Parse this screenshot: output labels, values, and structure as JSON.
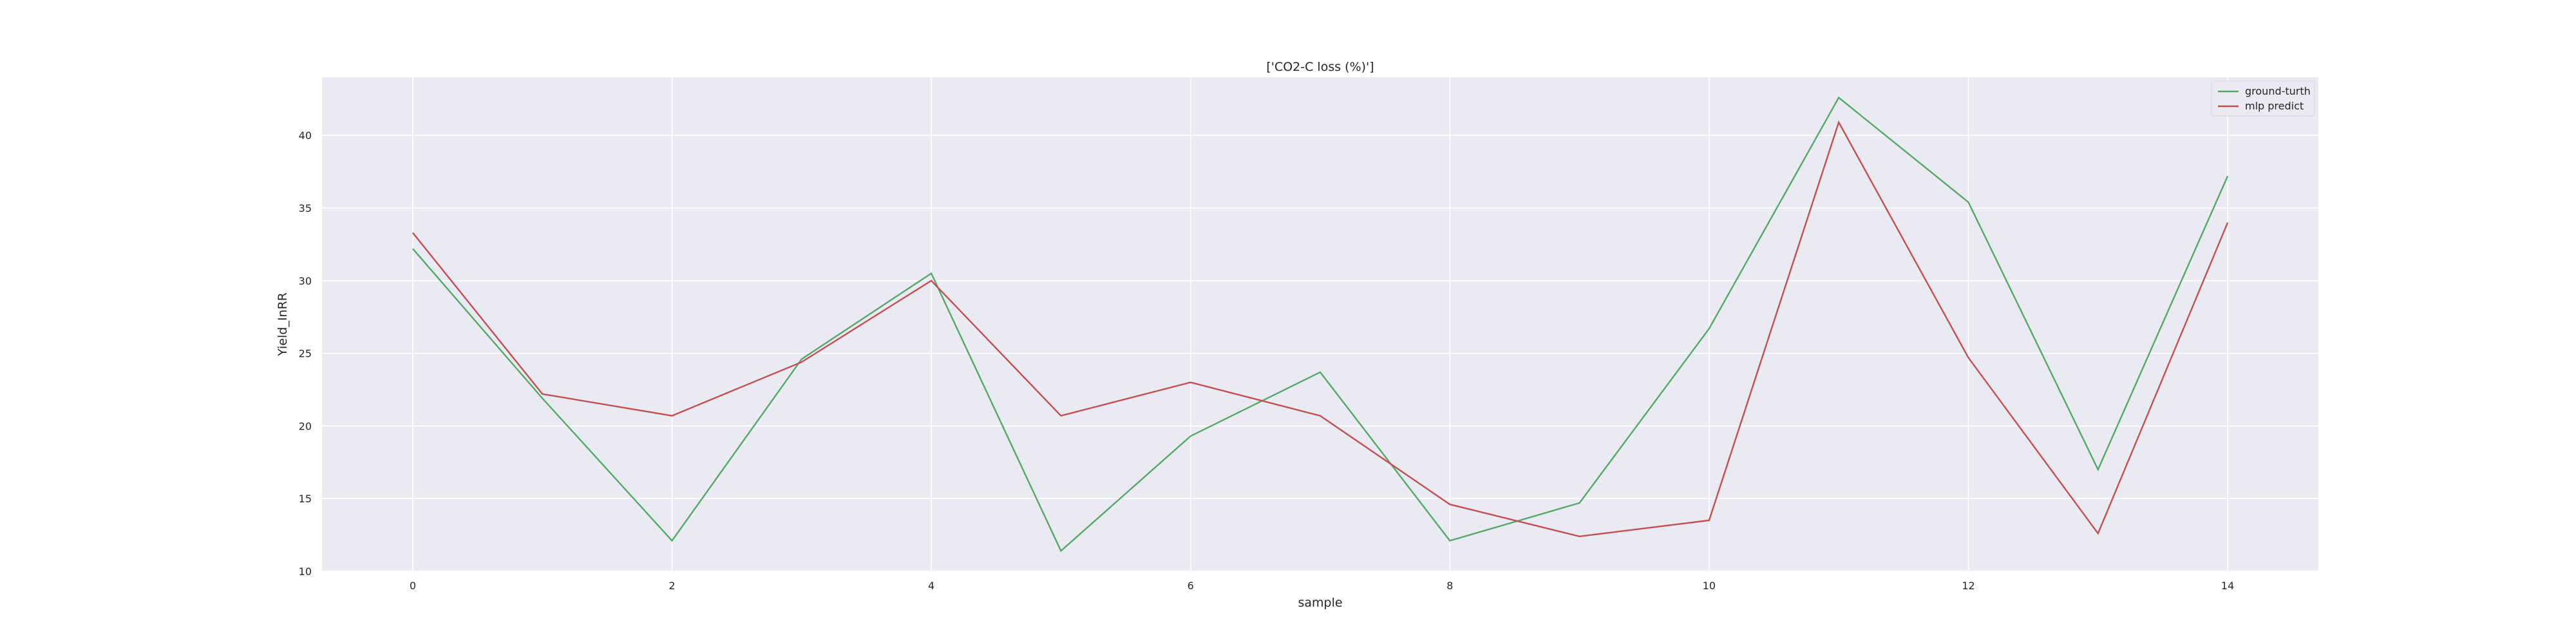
{
  "chart_data": {
    "type": "line",
    "title": "['CO2-C loss (%)']",
    "xlabel": "sample",
    "ylabel": "Yield_InRR",
    "x": [
      0,
      1,
      2,
      3,
      4,
      5,
      6,
      7,
      8,
      9,
      10,
      11,
      12,
      13,
      14
    ],
    "xlim": [
      -0.7,
      14.7
    ],
    "ylim": [
      10,
      44
    ],
    "xticks": [
      0,
      2,
      4,
      6,
      8,
      10,
      12,
      14
    ],
    "yticks": [
      10,
      15,
      20,
      25,
      30,
      35,
      40
    ],
    "grid": true,
    "legend_position": "top-right",
    "background": "#eaeaf2",
    "series": [
      {
        "name": "ground-turth",
        "color": "#55a868",
        "values": [
          32.2,
          21.9,
          12.1,
          24.6,
          30.5,
          11.4,
          19.3,
          23.7,
          12.1,
          14.7,
          26.7,
          42.6,
          35.4,
          17.0,
          37.2
        ]
      },
      {
        "name": "mlp predict",
        "color": "#c44e52",
        "values": [
          33.3,
          22.2,
          20.7,
          24.4,
          30.0,
          20.7,
          23.0,
          20.7,
          14.6,
          12.4,
          13.5,
          40.9,
          24.7,
          12.6,
          34.0
        ]
      }
    ]
  }
}
